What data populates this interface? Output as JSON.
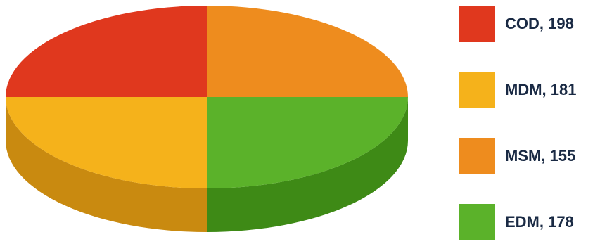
{
  "chart_data": {
    "type": "pie",
    "style": "3d",
    "title": "",
    "slices": [
      {
        "label": "COD",
        "value": 198,
        "color": "#e0381e",
        "side": "#b82a14",
        "legend_text": "COD, 198"
      },
      {
        "label": "MDM",
        "value": 181,
        "color": "#f5b21b",
        "side": "#c98a10",
        "legend_text": "MDM, 181"
      },
      {
        "label": "MSM",
        "value": 155,
        "color": "#ee8c1e",
        "side": "#c46a12",
        "legend_text": "MSM, 155"
      },
      {
        "label": "EDM",
        "value": 178,
        "color": "#5bb22a",
        "side": "#3e8a16",
        "legend_text": "EDM, 178"
      }
    ],
    "legend_position": "right"
  }
}
